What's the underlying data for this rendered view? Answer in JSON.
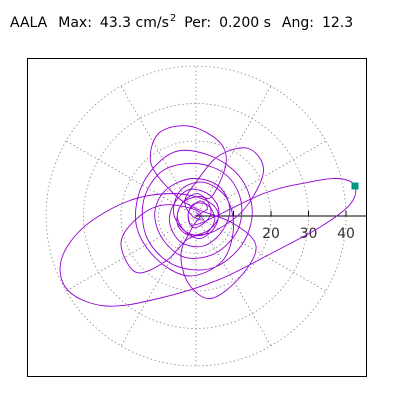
{
  "header": {
    "station": "AALA",
    "max_label": "Max:",
    "max_value": "43.3 cm/s",
    "max_exponent": "2",
    "per_label": "Per:",
    "per_value": "0.200 s",
    "ang_label": "Ang:",
    "ang_value": "12.3"
  },
  "colors": {
    "trace": "#9400d3",
    "marker": "#009a80",
    "grid": "#888888",
    "frame": "#000000",
    "axis": "#000000"
  },
  "chart_data": {
    "type": "scatter",
    "title": "",
    "xlabel": "",
    "ylabel": "",
    "axis_ticks": [
      10,
      20,
      30,
      40
    ],
    "tick_labels": [
      "20",
      "30",
      "40"
    ],
    "radial_circles": [
      10,
      20,
      30,
      40
    ],
    "angular_spokes_deg": [
      30,
      60,
      90,
      120,
      150,
      210,
      240,
      270,
      300,
      330
    ],
    "xlim": [
      -45,
      45
    ],
    "ylim": [
      -45,
      45
    ],
    "grid": true,
    "peak_point": {
      "x": 42.4,
      "y": 8.0
    },
    "series": [
      {
        "values": [
          [
            0,
            0
          ],
          [
            3,
            2
          ],
          [
            1,
            4
          ],
          [
            -2,
            1
          ],
          [
            -1,
            -3
          ],
          [
            2,
            -2
          ],
          [
            4,
            1
          ],
          [
            2,
            5
          ],
          [
            -3,
            4
          ],
          [
            -5,
            0
          ],
          [
            -3,
            -4
          ],
          [
            1,
            -6
          ],
          [
            5,
            -3
          ],
          [
            6,
            2
          ],
          [
            3,
            6
          ],
          [
            -2,
            7
          ],
          [
            -6,
            3
          ],
          [
            -7,
            -2
          ],
          [
            -4,
            -7
          ],
          [
            2,
            -8
          ],
          [
            7,
            -4
          ],
          [
            9,
            2
          ],
          [
            6,
            8
          ],
          [
            -1,
            10
          ],
          [
            -8,
            7
          ],
          [
            -11,
            1
          ],
          [
            -9,
            -6
          ],
          [
            -3,
            -11
          ],
          [
            5,
            -10
          ],
          [
            11,
            -4
          ],
          [
            12,
            4
          ],
          [
            8,
            11
          ],
          [
            0,
            14
          ],
          [
            -9,
            12
          ],
          [
            -14,
            4
          ],
          [
            -13,
            -6
          ],
          [
            -6,
            -13
          ],
          [
            4,
            -14
          ],
          [
            12,
            -8
          ],
          [
            15,
            1
          ],
          [
            12,
            10
          ],
          [
            4,
            16
          ],
          [
            -6,
            17
          ],
          [
            -14,
            9
          ],
          [
            -16,
            -2
          ],
          [
            -11,
            -11
          ],
          [
            -2,
            -16
          ],
          [
            7,
            -12
          ],
          [
            10,
            -3
          ],
          [
            8,
            5
          ],
          [
            2,
            9
          ],
          [
            -4,
            7
          ],
          [
            -6,
            1
          ],
          [
            -3,
            -4
          ],
          [
            2,
            -5
          ],
          [
            5,
            -1
          ],
          [
            3,
            3
          ],
          [
            -1,
            3
          ],
          [
            -2,
            -1
          ],
          [
            1,
            -2
          ],
          [
            18,
            6
          ],
          [
            30,
            9
          ],
          [
            38,
            10
          ],
          [
            42.4,
            8
          ],
          [
            41,
            3
          ],
          [
            33,
            -3
          ],
          [
            20,
            -10
          ],
          [
            6,
            -17
          ],
          [
            -10,
            -22
          ],
          [
            -24,
            -24
          ],
          [
            -34,
            -20
          ],
          [
            -36,
            -12
          ],
          [
            -30,
            -3
          ],
          [
            -18,
            4
          ],
          [
            -6,
            6
          ],
          [
            3,
            4
          ],
          [
            6,
            0
          ],
          [
            3,
            -4
          ],
          [
            -2,
            -5
          ],
          [
            -5,
            -2
          ],
          [
            -4,
            3
          ],
          [
            0,
            6
          ],
          [
            4,
            5
          ],
          [
            8,
            14
          ],
          [
            6,
            20
          ],
          [
            -2,
            24
          ],
          [
            -10,
            22
          ],
          [
            -12,
            14
          ],
          [
            -6,
            6
          ],
          [
            0,
            2
          ],
          [
            10,
            -2
          ],
          [
            16,
            -8
          ],
          [
            12,
            -16
          ],
          [
            4,
            -22
          ],
          [
            -2,
            -18
          ],
          [
            -4,
            -10
          ],
          [
            -1,
            -3
          ],
          [
            1,
            1
          ],
          [
            -8,
            3
          ],
          [
            -15,
            0
          ],
          [
            -20,
            -7
          ],
          [
            -16,
            -15
          ],
          [
            -8,
            -12
          ],
          [
            -2,
            -6
          ],
          [
            5,
            -4
          ],
          [
            13,
            2
          ],
          [
            18,
            12
          ],
          [
            14,
            18
          ],
          [
            6,
            16
          ],
          [
            0,
            9
          ],
          [
            -3,
            4
          ],
          [
            -1,
            0
          ],
          [
            2,
            -1
          ],
          [
            0,
            1
          ]
        ]
      }
    ]
  }
}
